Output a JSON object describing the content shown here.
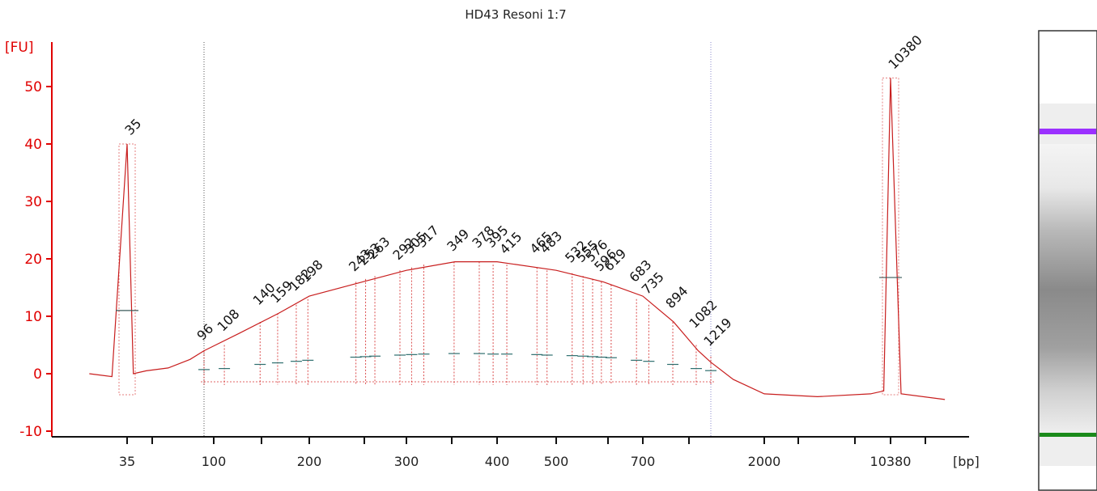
{
  "chart_data": {
    "type": "line",
    "title": "HD43 Resoni 1:7",
    "ylabel": "[FU]",
    "xlabel": "[bp]",
    "ylim": [
      -11,
      57
    ],
    "yticks": [
      -10,
      0,
      10,
      20,
      30,
      40,
      50
    ],
    "xticks": [
      "35",
      "100",
      "200",
      "300",
      "400",
      "500",
      "700",
      "2000",
      "10380"
    ],
    "marker_peaks": [
      {
        "label": "35",
        "x": 35,
        "height": 40,
        "color": "#1a7a1a"
      },
      {
        "label": "10380",
        "x": 10380,
        "height": 51.5,
        "color": "#9b30ff"
      }
    ],
    "smear_region_bp": [
      96,
      1219
    ],
    "peaks": [
      {
        "label": "96",
        "x": 96,
        "y": 4
      },
      {
        "label": "108",
        "x": 108,
        "y": 5
      },
      {
        "label": "140",
        "x": 140,
        "y": 9
      },
      {
        "label": "159",
        "x": 159,
        "y": 10.5
      },
      {
        "label": "182",
        "x": 182,
        "y": 12
      },
      {
        "label": "198",
        "x": 198,
        "y": 13
      },
      {
        "label": "243",
        "x": 243,
        "y": 16
      },
      {
        "label": "253",
        "x": 253,
        "y": 16.5
      },
      {
        "label": "263",
        "x": 263,
        "y": 17
      },
      {
        "label": "292",
        "x": 292,
        "y": 18
      },
      {
        "label": "305",
        "x": 305,
        "y": 18.5
      },
      {
        "label": "317",
        "x": 317,
        "y": 19
      },
      {
        "label": "349",
        "x": 349,
        "y": 19.5
      },
      {
        "label": "378",
        "x": 378,
        "y": 19.5
      },
      {
        "label": "395",
        "x": 395,
        "y": 19
      },
      {
        "label": "415",
        "x": 415,
        "y": 19
      },
      {
        "label": "465",
        "x": 465,
        "y": 18.5
      },
      {
        "label": "483",
        "x": 483,
        "y": 18
      },
      {
        "label": "532",
        "x": 532,
        "y": 17.5
      },
      {
        "label": "555",
        "x": 555,
        "y": 17
      },
      {
        "label": "576",
        "x": 576,
        "y": 16.5
      },
      {
        "label": "596",
        "x": 596,
        "y": 16
      },
      {
        "label": "619",
        "x": 619,
        "y": 15.5
      },
      {
        "label": "683",
        "x": 683,
        "y": 13
      },
      {
        "label": "735",
        "x": 735,
        "y": 12
      },
      {
        "label": "894",
        "x": 894,
        "y": 9
      },
      {
        "label": "1082",
        "x": 1082,
        "y": 5
      },
      {
        "label": "1219",
        "x": 1219,
        "y": 3
      }
    ],
    "trace": [
      {
        "x": 28,
        "y": 0
      },
      {
        "x": 32,
        "y": -0.5
      },
      {
        "x": 35,
        "y": 40
      },
      {
        "x": 38,
        "y": 0
      },
      {
        "x": 45,
        "y": 0.5
      },
      {
        "x": 60,
        "y": 1
      },
      {
        "x": 80,
        "y": 2.5
      },
      {
        "x": 96,
        "y": 4
      },
      {
        "x": 120,
        "y": 7
      },
      {
        "x": 160,
        "y": 10.5
      },
      {
        "x": 200,
        "y": 13.5
      },
      {
        "x": 250,
        "y": 16
      },
      {
        "x": 300,
        "y": 18
      },
      {
        "x": 350,
        "y": 19.5
      },
      {
        "x": 400,
        "y": 19.5
      },
      {
        "x": 500,
        "y": 18
      },
      {
        "x": 600,
        "y": 16
      },
      {
        "x": 700,
        "y": 13.5
      },
      {
        "x": 900,
        "y": 9
      },
      {
        "x": 1100,
        "y": 4
      },
      {
        "x": 1219,
        "y": 2
      },
      {
        "x": 1500,
        "y": -1
      },
      {
        "x": 2000,
        "y": -3.5
      },
      {
        "x": 4000,
        "y": -4
      },
      {
        "x": 8000,
        "y": -3.5
      },
      {
        "x": 9500,
        "y": -3
      },
      {
        "x": 10380,
        "y": 51.5
      },
      {
        "x": 11000,
        "y": -3.5
      },
      {
        "x": 14000,
        "y": -4.5
      }
    ]
  },
  "gel": {
    "upper_marker_color": "#9b30ff",
    "lower_marker_color": "#1a8a1a",
    "smear_intensity": 0.6
  }
}
